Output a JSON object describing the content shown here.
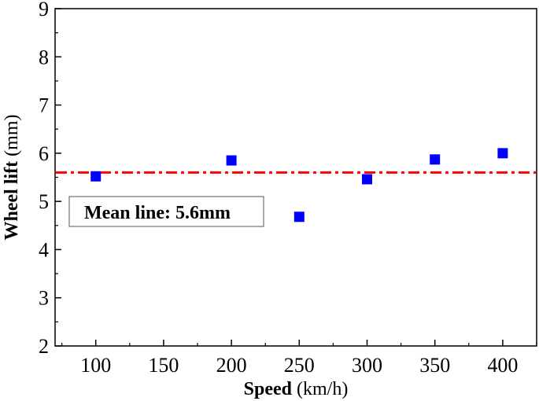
{
  "chart_data": {
    "type": "scatter",
    "title": "",
    "xlabel": {
      "bold": "Speed",
      "normal": " (km/h)"
    },
    "ylabel": {
      "bold": "Wheel lift",
      "normal": " (mm)"
    },
    "xlim": [
      70,
      425
    ],
    "ylim": [
      2,
      9
    ],
    "xticks": [
      100,
      150,
      200,
      250,
      300,
      350,
      400
    ],
    "yticks": [
      2,
      3,
      4,
      5,
      6,
      7,
      8,
      9
    ],
    "grid": false,
    "series": [
      {
        "name": "Wheel lift",
        "marker": "square",
        "color": "#0000ff",
        "x": [
          100,
          200,
          250,
          300,
          350,
          400
        ],
        "y": [
          5.52,
          5.85,
          4.68,
          5.46,
          5.87,
          6.0
        ]
      }
    ],
    "reference_line": {
      "y": 5.6,
      "style": "dash-dot",
      "color": "#ff0000",
      "label": "Mean line: 5.6mm"
    }
  }
}
